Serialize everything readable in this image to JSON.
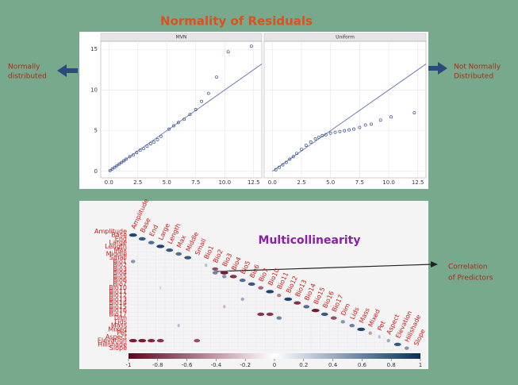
{
  "title": "Normality of Residuals",
  "left_note": [
    "Normally",
    "distributed"
  ],
  "right_note": [
    "Not Normally",
    "Distributed"
  ],
  "qq": {
    "type": "scatter",
    "xlim": [
      -0.7,
      13.2
    ],
    "ylim": [
      -0.8,
      16
    ],
    "xticks": [
      {
        "value": 0,
        "label": "0.0"
      },
      2.5,
      {
        "value": 5,
        "label": "5.0"
      },
      7.5,
      {
        "value": 10,
        "label": "10.0"
      },
      12.5
    ],
    "yticks": [
      0,
      5,
      10,
      15
    ],
    "color": "#3a4f8c",
    "panels": [
      {
        "title": "MVN",
        "line_x": [
          0,
          13.2
        ],
        "line_y": [
          0,
          13.2
        ],
        "x": [
          0.1,
          0.3,
          0.5,
          0.7,
          0.9,
          1.1,
          1.3,
          1.5,
          1.8,
          2.1,
          2.4,
          2.7,
          3.0,
          3.3,
          3.6,
          3.9,
          4.2,
          4.5,
          5.2,
          5.6,
          6.0,
          6.5,
          7.0,
          7.5,
          8.0,
          8.6,
          9.3,
          10.3,
          12.3
        ],
        "y": [
          0.1,
          0.3,
          0.5,
          0.7,
          0.9,
          1.1,
          1.3,
          1.5,
          1.8,
          2.0,
          2.3,
          2.6,
          2.8,
          3.1,
          3.4,
          3.6,
          3.9,
          4.3,
          5.2,
          5.6,
          6.0,
          6.4,
          7.0,
          7.6,
          8.6,
          9.6,
          11.6,
          14.7,
          15.4
        ]
      },
      {
        "title": "Uniform",
        "line_x": [
          0,
          13.2
        ],
        "line_y": [
          0,
          13.2
        ],
        "x": [
          0.3,
          0.6,
          0.9,
          1.2,
          1.5,
          1.8,
          2.1,
          2.5,
          2.9,
          3.3,
          3.7,
          4.0,
          4.3,
          4.6,
          5.0,
          5.4,
          5.8,
          6.2,
          6.6,
          7.0,
          7.5,
          8.0,
          8.5,
          9.3,
          10.2,
          12.2
        ],
        "y": [
          0.2,
          0.5,
          0.8,
          1.1,
          1.5,
          1.8,
          2.2,
          2.7,
          3.2,
          3.6,
          4.0,
          4.2,
          4.4,
          4.5,
          4.7,
          4.8,
          4.9,
          5.0,
          5.1,
          5.2,
          5.4,
          5.7,
          5.8,
          6.3,
          6.7,
          7.2
        ]
      }
    ]
  },
  "corr": {
    "title": "Multicollinearity",
    "annotation": [
      "Correlation",
      "of Predictors"
    ],
    "variables": [
      "Amplitude",
      "Base",
      "End",
      "Large",
      "Length",
      "Max",
      "Middle",
      "Small",
      "Bio1",
      "Bio2",
      "Bio3",
      "Bio4",
      "Bio5",
      "Bio6",
      "Bio7",
      "Bio10",
      "Bio11",
      "Bio12",
      "Bio13",
      "Bio14",
      "Bio15",
      "Bio16",
      "Bio17",
      "Dim",
      "Lids",
      "Mass",
      "Mixed",
      "Pet",
      "Aspect",
      "Elevation",
      "Hillshade",
      "Slope"
    ],
    "colors": [
      "#67001f",
      "#ffffff",
      "#053061"
    ],
    "colorbar_lim": [
      -1,
      1
    ],
    "colorbar_ticks": [
      -1,
      -0.8,
      -0.6,
      -0.4,
      -0.2,
      0,
      0.2,
      0.4,
      0.6,
      0.8,
      1
    ],
    "cells": [
      [
        1,
        0,
        0.9
      ],
      [
        2,
        1,
        0.8
      ],
      [
        3,
        2,
        0.7
      ],
      [
        4,
        3,
        0.9
      ],
      [
        5,
        4,
        0.8
      ],
      [
        6,
        5,
        0.7
      ],
      [
        7,
        6,
        0.8
      ],
      [
        8,
        0,
        0.5
      ],
      [
        9,
        8,
        0.3
      ],
      [
        10,
        9,
        -0.7
      ],
      [
        11,
        10,
        -0.9
      ],
      [
        12,
        11,
        -0.8
      ],
      [
        11,
        9,
        0.6
      ],
      [
        12,
        10,
        0.5
      ],
      [
        13,
        12,
        0.7
      ],
      [
        14,
        13,
        0.8
      ],
      [
        15,
        14,
        -0.6
      ],
      [
        16,
        15,
        0.9
      ],
      [
        17,
        16,
        -0.5
      ],
      [
        18,
        17,
        0.9
      ],
      [
        19,
        18,
        -0.8
      ],
      [
        20,
        19,
        0.7
      ],
      [
        21,
        20,
        -0.9
      ],
      [
        22,
        21,
        0.8
      ],
      [
        23,
        22,
        -0.7
      ],
      [
        24,
        23,
        0.5
      ],
      [
        25,
        24,
        0.6
      ],
      [
        26,
        25,
        0.9
      ],
      [
        27,
        26,
        -0.4
      ],
      [
        28,
        27,
        0.3
      ],
      [
        29,
        28,
        0.4
      ],
      [
        30,
        29,
        0.8
      ],
      [
        31,
        30,
        0.5
      ],
      [
        29,
        0,
        -0.9
      ],
      [
        29,
        1,
        -0.9
      ],
      [
        29,
        2,
        -0.85
      ],
      [
        29,
        3,
        -0.8
      ],
      [
        29,
        7,
        -0.7
      ],
      [
        20,
        10,
        -0.3
      ],
      [
        25,
        5,
        0.3
      ],
      [
        15,
        3,
        -0.2
      ],
      [
        22,
        14,
        -0.8
      ],
      [
        22,
        15,
        -0.8
      ],
      [
        23,
        16,
        0.6
      ],
      [
        18,
        12,
        0.4
      ]
    ]
  }
}
